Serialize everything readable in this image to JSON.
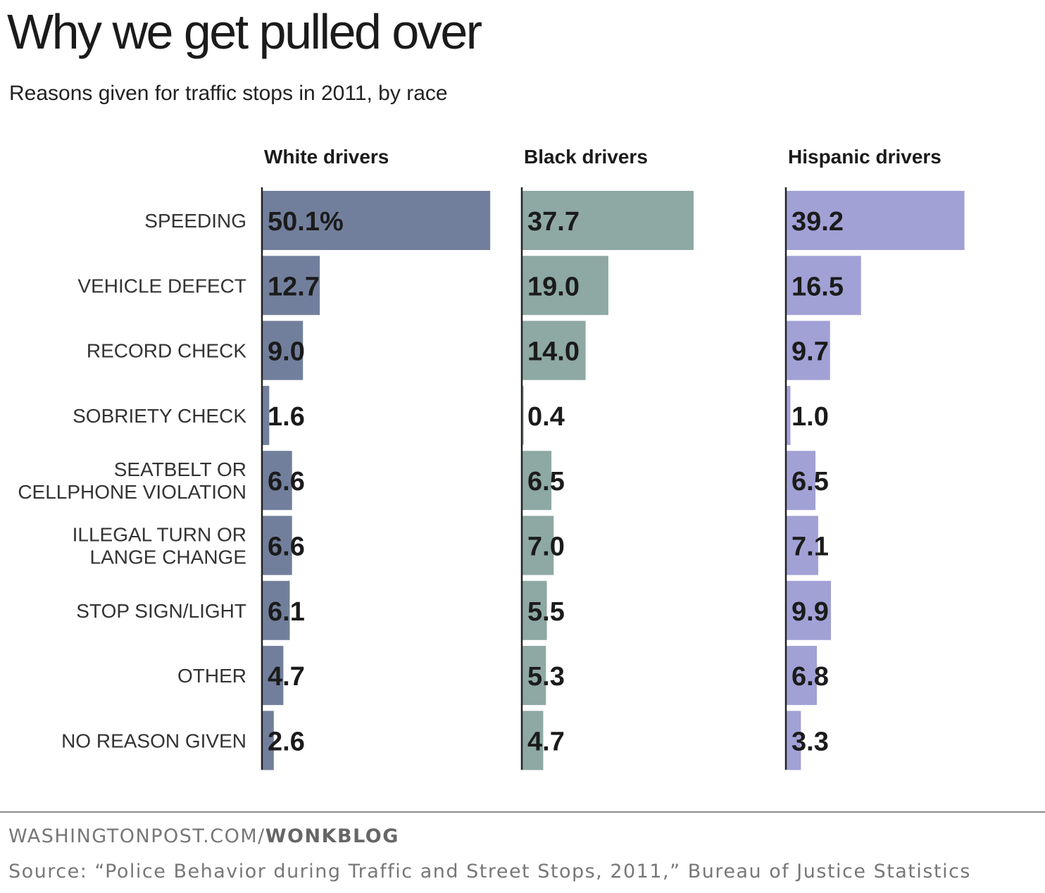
{
  "header": {
    "title": "Why we get pulled over",
    "subtitle": "Reasons given for traffic stops in 2011, by race"
  },
  "chart_data": {
    "type": "bar",
    "orientation": "horizontal",
    "categories": [
      [
        "SPEEDING"
      ],
      [
        "VEHICLE DEFECT"
      ],
      [
        "RECORD CHECK"
      ],
      [
        "SOBRIETY CHECK"
      ],
      [
        "SEATBELT OR",
        "CELLPHONE VIOLATION"
      ],
      [
        "ILLEGAL TURN OR",
        "LANGE CHANGE"
      ],
      [
        "STOP SIGN/LIGHT"
      ],
      [
        "OTHER"
      ],
      [
        "NO REASON GIVEN"
      ]
    ],
    "series": [
      {
        "name": "White drivers",
        "color": "#727f9c",
        "values": [
          50.1,
          12.7,
          9.0,
          1.6,
          6.6,
          6.6,
          6.1,
          4.7,
          2.6
        ],
        "labels": [
          "50.1%",
          "12.7",
          "9.0",
          "1.6",
          "6.6",
          "6.6",
          "6.1",
          "4.7",
          "2.6"
        ]
      },
      {
        "name": "Black drivers",
        "color": "#8ea8a3",
        "values": [
          37.7,
          19.0,
          14.0,
          0.4,
          6.5,
          7.0,
          5.5,
          5.3,
          4.7
        ],
        "labels": [
          "37.7",
          "19.0",
          "14.0",
          "0.4",
          "6.5",
          "7.0",
          "5.5",
          "5.3",
          "4.7"
        ]
      },
      {
        "name": "Hispanic drivers",
        "color": "#a1a1d6",
        "values": [
          39.2,
          16.5,
          9.7,
          1.0,
          6.5,
          7.1,
          9.9,
          6.8,
          3.3
        ],
        "labels": [
          "39.2",
          "16.5",
          "9.7",
          "1.0",
          "6.5",
          "7.1",
          "9.9",
          "6.8",
          "3.3"
        ]
      }
    ],
    "unit": "%"
  },
  "footer": {
    "site_prefix": "WASHINGTONPOST.COM/",
    "site_blog": "WONKBLOG",
    "source": "Source: “Police Behavior during Traffic and Street Stops, 2011,” Bureau of Justice Statistics"
  }
}
